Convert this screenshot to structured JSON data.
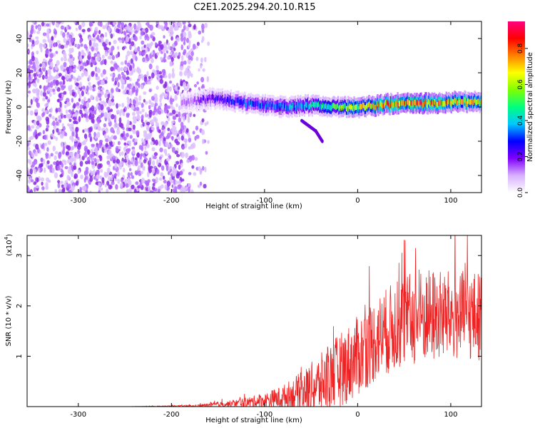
{
  "title": "C2E1.2025.294.20.10.R15",
  "chart_data": [
    {
      "type": "heatmap",
      "name": "spectrogram",
      "xlabel": "Height of straight line (km)",
      "ylabel": "Frequency (Hz)",
      "xlim": [
        -355,
        133
      ],
      "ylim": [
        -50,
        50
      ],
      "xticks": [
        -300,
        -200,
        -100,
        0,
        100
      ],
      "xtick_labels": [
        "-300",
        "-200",
        "-100",
        "0",
        "100"
      ],
      "yticks": [
        -40,
        -20,
        0,
        20,
        40
      ],
      "ytick_labels": [
        "-40",
        "-20",
        "0",
        "20",
        "40"
      ],
      "colorbar": {
        "label": "Normalized spectral amplitude",
        "range": [
          0,
          0.95
        ],
        "ticks": [
          0.0,
          0.2,
          0.4,
          0.6,
          0.8
        ],
        "tick_labels": [
          "0.0",
          "0.2",
          "0.4",
          "0.6",
          "0.8"
        ],
        "colormap": [
          "#ffffff",
          "#d8b0ff",
          "#8000ff",
          "#0000ff",
          "#00c8ff",
          "#00ff80",
          "#80ff00",
          "#ffff00",
          "#ff8000",
          "#ff0000",
          "#ff0080"
        ]
      },
      "noise_region": {
        "x_range": [
          -355,
          -180
        ],
        "y_range": [
          -50,
          50
        ],
        "amplitude": 0.1
      },
      "signal_track": {
        "x": [
          -180,
          -160,
          -140,
          -120,
          -100,
          -80,
          -60,
          -40,
          -20,
          0,
          20,
          40,
          60,
          80,
          100,
          120,
          133
        ],
        "center_freq": [
          3,
          5,
          4,
          2,
          1,
          0,
          1,
          1,
          0,
          0,
          1,
          2,
          2,
          2,
          3,
          3,
          3
        ],
        "peak_amplitude": [
          0.15,
          0.25,
          0.3,
          0.35,
          0.35,
          0.4,
          0.45,
          0.5,
          0.6,
          0.7,
          0.8,
          0.85,
          0.9,
          0.85,
          0.8,
          0.75,
          0.7
        ]
      },
      "chirp_feature": {
        "x": [
          -60,
          -45,
          -38
        ],
        "freq": [
          -8,
          -14,
          -20
        ]
      }
    },
    {
      "type": "line",
      "name": "snr",
      "xlabel": "Height of straight line (km)",
      "ylabel": "SNR (10 * v/v)",
      "y_scale_label": "(x10",
      "y_scale_exponent": "4",
      "y_scale_close": ")",
      "xlim": [
        -355,
        133
      ],
      "ylim": [
        0,
        3.4
      ],
      "xticks": [
        -300,
        -200,
        -100,
        0,
        100
      ],
      "xtick_labels": [
        "-300",
        "-200",
        "-100",
        "0",
        "100"
      ],
      "yticks": [
        1,
        2,
        3
      ],
      "ytick_labels": [
        "1",
        "2",
        "3"
      ],
      "series": [
        {
          "name": "SNR",
          "color": "#ee2222",
          "x": [
            -355,
            -300,
            -250,
            -200,
            -175,
            -160,
            -140,
            -120,
            -100,
            -80,
            -60,
            -40,
            -20,
            0,
            20,
            40,
            60,
            80,
            100,
            120,
            133
          ],
          "mean": [
            0.0,
            0.0,
            0.0,
            0.01,
            0.01,
            0.03,
            0.05,
            0.08,
            0.12,
            0.18,
            0.3,
            0.45,
            0.7,
            1.0,
            1.35,
            1.6,
            1.75,
            1.8,
            1.8,
            1.8,
            1.8
          ],
          "noise_amp": [
            0.0,
            0.0,
            0.0,
            0.01,
            0.02,
            0.04,
            0.06,
            0.1,
            0.15,
            0.25,
            0.4,
            0.6,
            0.75,
            0.8,
            0.85,
            0.9,
            0.95,
            0.95,
            0.9,
            0.9,
            0.9
          ]
        }
      ]
    }
  ]
}
